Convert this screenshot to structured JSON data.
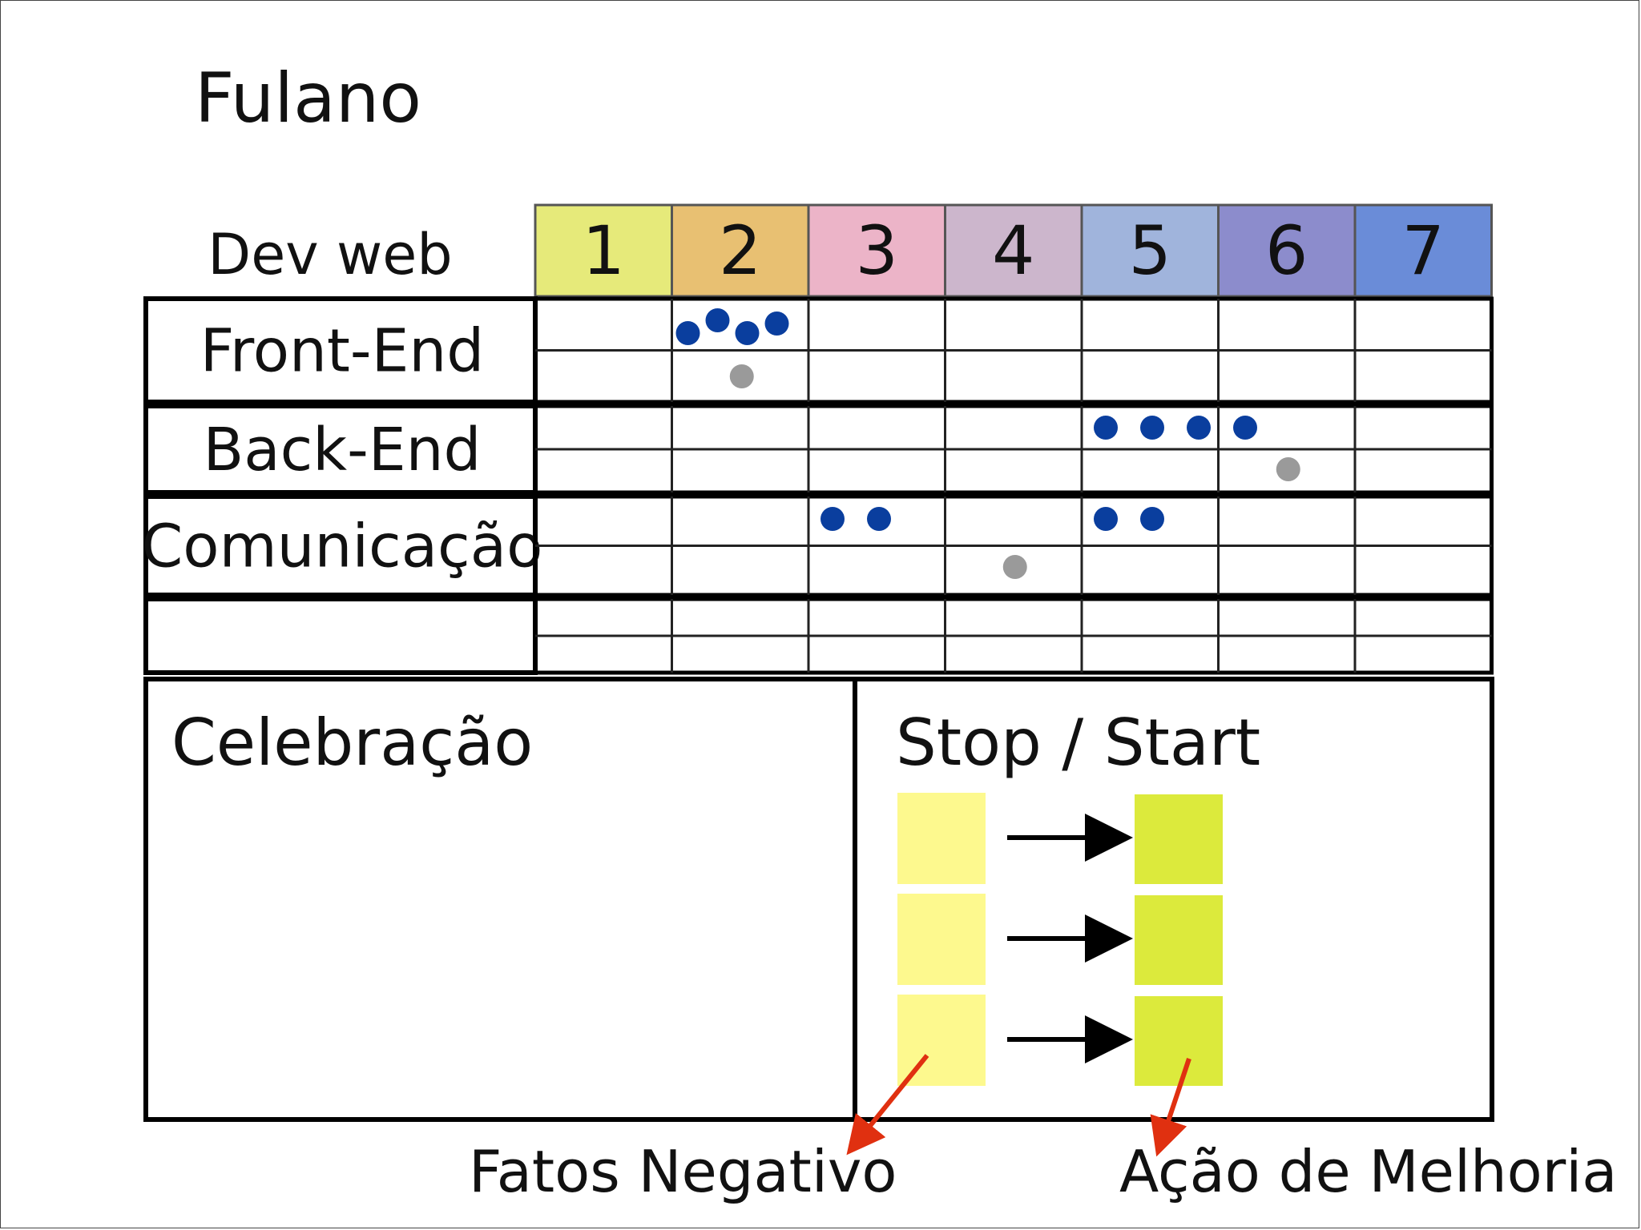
{
  "title": "Fulano",
  "grid_label": "Dev web",
  "levels": [
    "1",
    "2",
    "3",
    "4",
    "5",
    "6",
    "7"
  ],
  "level_colors": [
    "#e6ea7a",
    "#e8c072",
    "#ecb4c8",
    "#ccb6cc",
    "#a0b4dc",
    "#8c8ccc",
    "#6a8cd8"
  ],
  "dot_colors": {
    "blue": "#0a3e9e",
    "gray": "#9a9a9a"
  },
  "rows": [
    {
      "label": "Front-End",
      "blue_level": 2,
      "blue_count": 4,
      "gray_level": 2
    },
    {
      "label": "Back-End",
      "blue_level": 5,
      "blue_count": 4,
      "gray_level": 6
    },
    {
      "label": "Comunicação",
      "blue_groups": [
        {
          "level": 3,
          "count": 2
        },
        {
          "level": 5,
          "count": 2
        }
      ],
      "gray_level": 4
    },
    {
      "label": ""
    }
  ],
  "celebration_title": "Celebração",
  "stopstart_title": "Stop / Start",
  "note_colors": {
    "stop": "#fdf98e",
    "start": "#dcea3c"
  },
  "note_pairs": 3,
  "arrow_color": "#e03010",
  "caption_negative": "Fatos Negativo",
  "caption_improvement": "Ação de Melhoria"
}
